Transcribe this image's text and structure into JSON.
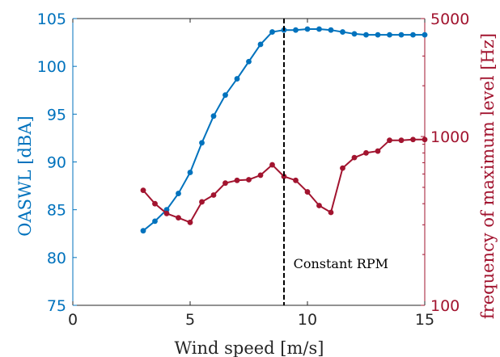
{
  "chart_data": {
    "type": "line",
    "xlabel": "Wind speed [m/s]",
    "xlim": [
      0,
      15
    ],
    "xticks": [
      "0",
      "5",
      "10",
      "15"
    ],
    "ylabel_left": "OASWL [dBA]",
    "ylim_left": [
      75,
      105
    ],
    "yticks_left": [
      "75",
      "80",
      "85",
      "90",
      "95",
      "100",
      "105"
    ],
    "ylabel_right": "frequency of maximum level [Hz]",
    "ylim_right": [
      100,
      5000
    ],
    "yscale_right": "log",
    "yticks_right": [
      "100",
      "1000",
      "5000"
    ],
    "grid": false,
    "vline": {
      "x": 9,
      "style": "dashed",
      "color": "#000000"
    },
    "annotation": {
      "text": "Constant RPM",
      "x": 9.4,
      "y": 79.3
    },
    "series": [
      {
        "axis": "left",
        "color": "#0072bd",
        "x": [
          3,
          3.5,
          4,
          4.5,
          5,
          5.5,
          6,
          6.5,
          7,
          7.5,
          8,
          8.5,
          9,
          9.5,
          10,
          10.5,
          11,
          11.5,
          12,
          12.5,
          13,
          13.5,
          14,
          14.5,
          15
        ],
        "values": [
          82.8,
          83.8,
          85.0,
          86.7,
          88.9,
          92.0,
          94.8,
          97.0,
          98.7,
          100.5,
          102.3,
          103.6,
          103.8,
          103.8,
          103.9,
          103.9,
          103.8,
          103.6,
          103.4,
          103.3,
          103.3,
          103.3,
          103.3,
          103.3,
          103.3
        ]
      },
      {
        "axis": "right",
        "color": "#a2142f",
        "x": [
          3,
          3.5,
          4,
          4.5,
          5,
          5.5,
          6,
          6.5,
          7,
          7.5,
          8,
          8.5,
          9,
          9.5,
          10,
          10.5,
          11,
          11.5,
          12,
          12.5,
          13,
          13.5,
          14,
          14.5,
          15
        ],
        "values": [
          480,
          400,
          350,
          330,
          310,
          410,
          450,
          530,
          550,
          555,
          590,
          680,
          580,
          550,
          470,
          390,
          355,
          650,
          750,
          800,
          820,
          950,
          950,
          960,
          960
        ]
      }
    ]
  }
}
